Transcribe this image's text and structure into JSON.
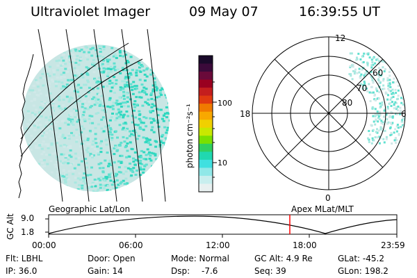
{
  "header": {
    "title": "Ultraviolet Imager",
    "date": "09 May 07",
    "time": "16:39:55 UT"
  },
  "colorbar": {
    "unit_label": "photon cm⁻²s⁻¹",
    "ticks": [
      "100",
      "10"
    ],
    "colors": [
      "#1a0a2a",
      "#3b0a3a",
      "#6a0a3a",
      "#9a0020",
      "#c41e1e",
      "#e03a10",
      "#f07a00",
      "#f8a800",
      "#f0d000",
      "#c8e800",
      "#7ae000",
      "#30d060",
      "#20d8b0",
      "#40e0e0",
      "#90e8e8",
      "#c8eeee",
      "#e8f0f0"
    ]
  },
  "polar_plot": {
    "mlt_labels": [
      "12",
      "18",
      "6",
      "0"
    ],
    "lat_labels": [
      "60",
      "70",
      "80"
    ]
  },
  "left_map": {
    "image_colors": [
      "#d0e8e8",
      "#a8e8e0",
      "#60e0d0",
      "#30d8c0"
    ]
  },
  "timeline": {
    "left_title": "Geographic Lat/Lon",
    "right_title": "Apex MLat/MLT",
    "axis_label": "GC Alt",
    "y_ticks": [
      "9.0",
      "1.8"
    ],
    "x_ticks": [
      "00:00",
      "06:00",
      "12:00",
      "18:00",
      "23:59"
    ],
    "marker_time": "16:39:55",
    "marker_color": "#ff0000"
  },
  "info": {
    "flt": "Flt: LBHL",
    "ip": "IP: 36.0",
    "door": "Door: Open",
    "gain": "Gain: 14",
    "mode": "Mode: Normal",
    "dsp_label": "Dsp:",
    "dsp_value": "-7.6",
    "gc_alt": "GC Alt: 4.9 Re",
    "seq": "Seq: 39",
    "glat": "GLat: -45.2",
    "glon": "GLon: 198.2"
  }
}
